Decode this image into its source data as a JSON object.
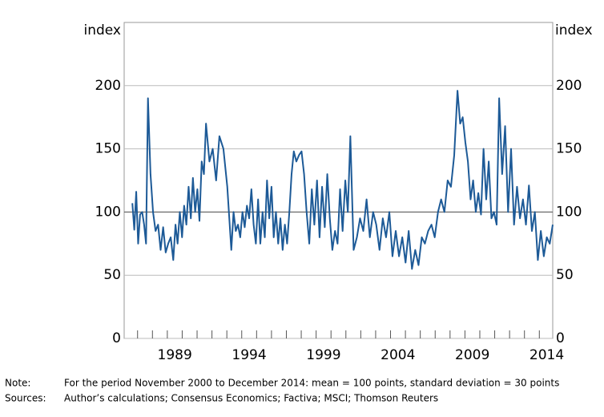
{
  "chart_data": {
    "type": "line",
    "y_label": "index",
    "y2_label": "index",
    "xlim": [
      1986.1,
      2014.9
    ],
    "ylim": [
      0,
      250
    ],
    "y2lim": [
      0,
      250
    ],
    "xticks": [
      {
        "value": 1989.5,
        "label": "1989"
      },
      {
        "value": 1994.5,
        "label": "1994"
      },
      {
        "value": 1999.5,
        "label": "1999"
      },
      {
        "value": 2004.5,
        "label": "2004"
      },
      {
        "value": 2009.5,
        "label": "2009"
      },
      {
        "value": 2014.5,
        "label": "2014"
      }
    ],
    "yticks": [
      0,
      50,
      100,
      150,
      200
    ],
    "y2ticks": [
      0,
      50,
      100,
      150,
      200
    ],
    "grid": true,
    "hline": 100,
    "x": [
      1986.65,
      1986.78,
      1986.91,
      1987.04,
      1987.17,
      1987.31,
      1987.44,
      1987.57,
      1987.7,
      1987.87,
      1988.04,
      1988.21,
      1988.38,
      1988.55,
      1988.72,
      1988.89,
      1989.06,
      1989.23,
      1989.4,
      1989.55,
      1989.69,
      1989.84,
      1989.99,
      1990.13,
      1990.28,
      1990.43,
      1990.58,
      1990.72,
      1990.87,
      1991.02,
      1991.16,
      1991.31,
      1991.46,
      1991.6,
      1991.83,
      1992.05,
      1992.28,
      1992.5,
      1992.77,
      1993.03,
      1993.3,
      1993.45,
      1993.6,
      1993.75,
      1993.9,
      1994.05,
      1994.2,
      1994.35,
      1994.5,
      1994.65,
      1994.8,
      1994.95,
      1995.1,
      1995.25,
      1995.4,
      1995.55,
      1995.7,
      1995.85,
      1996.0,
      1996.15,
      1996.3,
      1996.45,
      1996.6,
      1996.75,
      1996.9,
      1997.05,
      1997.2,
      1997.35,
      1997.5,
      1997.67,
      1997.85,
      1998.02,
      1998.19,
      1998.36,
      1998.54,
      1998.71,
      1998.88,
      1999.06,
      1999.23,
      1999.4,
      1999.58,
      1999.75,
      1999.92,
      2000.09,
      2000.27,
      2000.44,
      2000.61,
      2000.78,
      2000.96,
      2001.13,
      2001.3,
      2001.52,
      2001.74,
      2001.95,
      2002.17,
      2002.39,
      2002.61,
      2002.83,
      2003.04,
      2003.26,
      2003.48,
      2003.7,
      2003.92,
      2004.13,
      2004.35,
      2004.57,
      2004.79,
      2005.01,
      2005.22,
      2005.44,
      2005.66,
      2005.88,
      2006.1,
      2006.31,
      2006.53,
      2006.75,
      2006.97,
      2007.19,
      2007.4,
      2007.62,
      2007.84,
      2008.06,
      2008.28,
      2008.5,
      2008.68,
      2008.85,
      2009.03,
      2009.2,
      2009.38,
      2009.55,
      2009.73,
      2009.9,
      2010.08,
      2010.25,
      2010.43,
      2010.6,
      2010.78,
      2010.95,
      2011.13,
      2011.3,
      2011.5,
      2011.7,
      2011.9,
      2012.1,
      2012.3,
      2012.5,
      2012.7,
      2012.9,
      2013.1,
      2013.3,
      2013.5,
      2013.7,
      2013.9,
      2014.1,
      2014.3,
      2014.5,
      2014.7,
      2014.9
    ],
    "series": [
      {
        "color": "#1d5a97",
        "values": [
          107,
          86,
          116,
          75,
          98,
          100,
          90,
          75,
          190,
          130,
          100,
          85,
          90,
          70,
          88,
          68,
          75,
          80,
          62,
          90,
          75,
          100,
          80,
          105,
          90,
          120,
          95,
          127,
          100,
          118,
          93,
          140,
          130,
          170,
          140,
          150,
          125,
          160,
          150,
          120,
          70,
          100,
          85,
          90,
          80,
          100,
          88,
          105,
          95,
          118,
          90,
          75,
          110,
          75,
          100,
          80,
          125,
          95,
          120,
          80,
          100,
          75,
          95,
          70,
          90,
          75,
          100,
          130,
          148,
          140,
          145,
          148,
          130,
          100,
          75,
          118,
          90,
          125,
          80,
          120,
          88,
          130,
          95,
          70,
          85,
          75,
          118,
          85,
          125,
          100,
          160,
          70,
          80,
          95,
          85,
          110,
          80,
          100,
          90,
          70,
          95,
          80,
          100,
          65,
          85,
          65,
          80,
          60,
          85,
          55,
          70,
          58,
          80,
          75,
          85,
          90,
          80,
          100,
          110,
          100,
          125,
          120,
          145,
          196,
          170,
          175,
          155,
          140,
          110,
          125,
          100,
          115,
          98,
          150,
          110,
          140,
          95,
          100,
          90,
          190,
          130,
          168,
          100,
          150,
          90,
          120,
          95,
          110,
          90,
          121,
          85,
          100,
          62,
          85,
          65,
          80,
          75,
          90
        ]
      }
    ],
    "notes": [
      {
        "label": "Note:",
        "text": "For the period November 2000 to December 2014: mean = 100 points, standard deviation = 30 points"
      },
      {
        "label": "Sources:",
        "text": "Author’s calculations; Consensus Economics; Factiva; MSCI; Thomson Reuters"
      }
    ]
  }
}
